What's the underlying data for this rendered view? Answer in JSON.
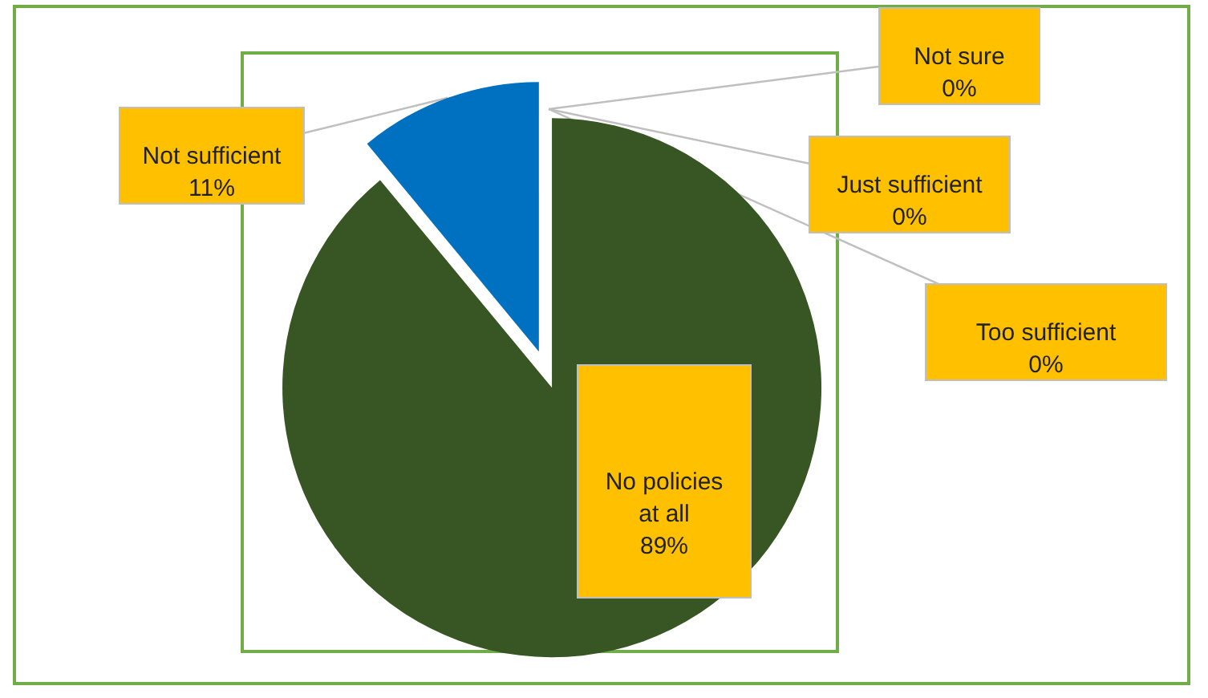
{
  "chart_data": {
    "type": "pie",
    "categories": [
      "No policies at all",
      "Not sufficient",
      "Not sure",
      "Just sufficient",
      "Too sufficient"
    ],
    "values": [
      89,
      11,
      0,
      0,
      0
    ],
    "colors": [
      "#375623",
      "#0070c0",
      "#a5a5a5",
      "#ffc000",
      "#5b9bd5"
    ],
    "value_labels": [
      "89%",
      "11%",
      "0%",
      "0%",
      "0%"
    ]
  }
}
